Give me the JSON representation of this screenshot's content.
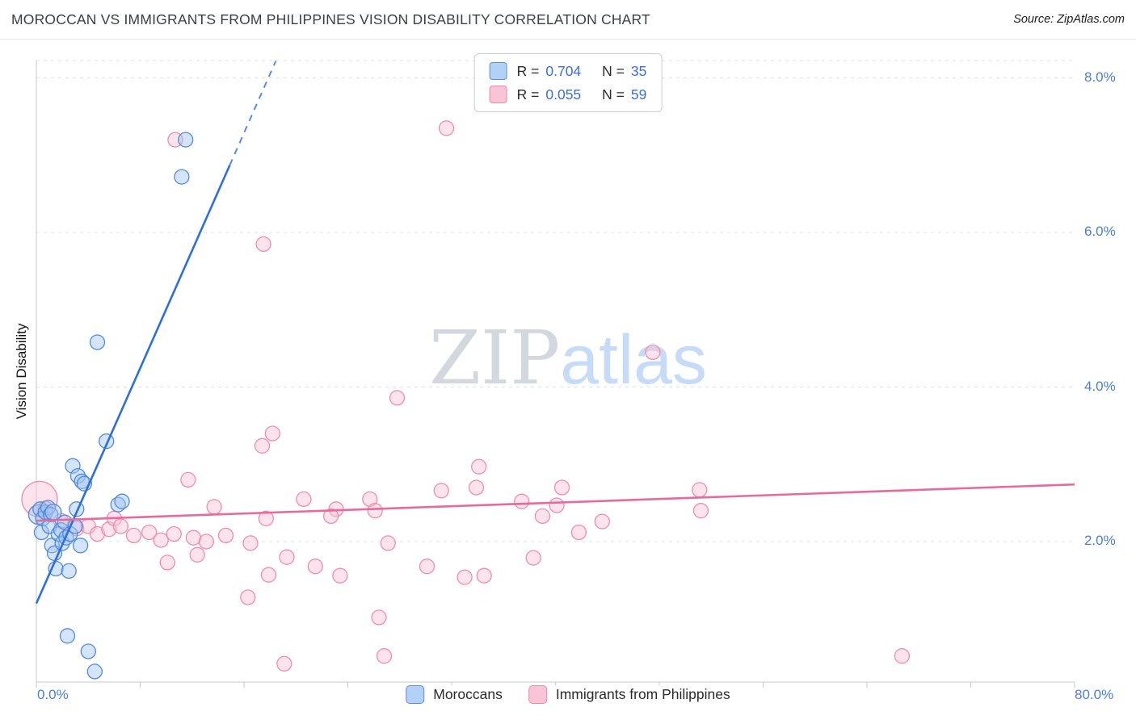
{
  "header": {
    "title": "MOROCCAN VS IMMIGRANTS FROM PHILIPPINES VISION DISABILITY CORRELATION CHART",
    "source": "Source: ZipAtlas.com"
  },
  "watermark": {
    "zip": "ZIP",
    "atlas": "atlas"
  },
  "correlation_legend": {
    "rows": [
      {
        "series": "Moroccans",
        "r_label": "R =",
        "r_value": "0.704",
        "n_label": "N =",
        "n_value": "35"
      },
      {
        "series": "Immigrants from Philippines",
        "r_label": "R =",
        "r_value": "0.055",
        "n_label": "N =",
        "n_value": "59"
      }
    ]
  },
  "bottom_legend": [
    {
      "label": "Moroccans"
    },
    {
      "label": "Immigrants from Philippines"
    }
  ],
  "colors": {
    "blue_fill": "#b3d0f7",
    "blue_stroke": "#5b8dd9",
    "pink_fill": "#f9c4d5",
    "pink_stroke": "#ef87ab",
    "axis_label_blue": "#4a7fd4",
    "value_blue": "#3a6fd8",
    "grid": "#dce0e5",
    "axis": "#c5cad1"
  },
  "chart_data": {
    "type": "scatter",
    "title": "MOROCCAN VS IMMIGRANTS FROM PHILIPPINES VISION DISABILITY CORRELATION CHART",
    "x_axis": {
      "range": [
        0,
        80
      ],
      "unit": "%",
      "tick_step": 8,
      "edge_labels": [
        "0.0%",
        "80.0%"
      ],
      "gridlines": false
    },
    "y_axis": {
      "label": "Vision Disability",
      "unit": "%",
      "ticks": [
        8,
        6,
        4,
        2
      ],
      "tick_labels": [
        "8.0%",
        "6.0%",
        "4.0%",
        "2.0%"
      ],
      "plot_range": [
        0.183,
        8.225
      ],
      "gridlines": "dashed",
      "labels_position": "right"
    },
    "legend_position": "top-center",
    "series": [
      {
        "name": "Moroccans",
        "R": 0.704,
        "N": 35,
        "point_fill": "#9fc3f2",
        "point_stroke": "#4a86d8",
        "trend": {
          "color": "#2e6fd8",
          "solid": [
            [
              0,
              1.2
            ],
            [
              14.9,
              6.87
            ]
          ],
          "dashed": [
            [
              14.9,
              6.87
            ],
            [
              18.45,
              8.22
            ]
          ]
        },
        "points": [
          [
            0.15,
            2.35,
            12
          ],
          [
            0.3,
            2.42,
            9
          ],
          [
            0.5,
            2.3,
            9
          ],
          [
            0.7,
            2.38,
            9
          ],
          [
            0.9,
            2.44,
            9
          ],
          [
            1.1,
            2.35,
            9
          ],
          [
            1.3,
            2.38,
            10
          ],
          [
            0.4,
            2.12,
            9
          ],
          [
            1.0,
            2.2,
            9
          ],
          [
            1.2,
            1.95,
            9
          ],
          [
            1.4,
            1.85,
            9
          ],
          [
            1.5,
            1.65,
            9
          ],
          [
            1.7,
            2.1,
            9
          ],
          [
            1.9,
            2.15,
            9
          ],
          [
            2.0,
            1.98,
            9
          ],
          [
            2.2,
            2.25,
            9
          ],
          [
            2.3,
            2.05,
            9
          ],
          [
            2.5,
            1.62,
            9
          ],
          [
            2.6,
            2.1,
            9
          ],
          [
            2.8,
            2.98,
            9
          ],
          [
            3.0,
            2.2,
            9
          ],
          [
            3.1,
            2.42,
            9
          ],
          [
            3.2,
            2.85,
            9
          ],
          [
            3.4,
            1.95,
            9
          ],
          [
            3.5,
            2.78,
            9
          ],
          [
            3.7,
            2.75,
            9
          ],
          [
            2.4,
            0.78,
            9
          ],
          [
            4.0,
            0.58,
            9
          ],
          [
            4.5,
            0.32,
            9
          ],
          [
            4.7,
            4.58,
            9
          ],
          [
            5.4,
            3.3,
            9
          ],
          [
            6.3,
            2.48,
            9
          ],
          [
            6.6,
            2.52,
            9
          ],
          [
            11.2,
            6.72,
            9
          ],
          [
            11.5,
            7.2,
            9
          ]
        ]
      },
      {
        "name": "Immigrants from Philippines",
        "R": 0.055,
        "N": 59,
        "point_fill": "#fac2d4",
        "point_stroke": "#ef87ab",
        "trend": {
          "color": "#e86a9a",
          "solid": [
            [
              0,
              2.27
            ],
            [
              80,
              2.74
            ]
          ]
        },
        "points": [
          [
            0.25,
            2.55,
            22
          ],
          [
            0.7,
            2.43,
            9
          ],
          [
            1.9,
            2.27,
            9
          ],
          [
            3.1,
            2.17,
            9
          ],
          [
            4.0,
            2.2,
            9
          ],
          [
            4.7,
            2.1,
            9
          ],
          [
            5.6,
            2.16,
            9
          ],
          [
            6.0,
            2.3,
            9
          ],
          [
            6.5,
            2.2,
            9
          ],
          [
            7.5,
            2.08,
            9
          ],
          [
            8.7,
            2.12,
            9
          ],
          [
            9.6,
            2.02,
            9
          ],
          [
            10.6,
            2.1,
            9
          ],
          [
            12.1,
            2.05,
            9
          ],
          [
            13.1,
            2.0,
            9
          ],
          [
            14.6,
            2.08,
            9
          ],
          [
            16.5,
            1.98,
            9
          ],
          [
            10.1,
            1.73,
            9
          ],
          [
            12.4,
            1.83,
            9
          ],
          [
            11.7,
            2.8,
            9
          ],
          [
            13.7,
            2.45,
            9
          ],
          [
            17.7,
            2.3,
            9
          ],
          [
            20.6,
            2.55,
            9
          ],
          [
            23.1,
            2.42,
            9
          ],
          [
            22.7,
            2.33,
            9
          ],
          [
            25.7,
            2.55,
            9
          ],
          [
            26.1,
            2.4,
            9
          ],
          [
            27.1,
            1.98,
            9
          ],
          [
            19.3,
            1.8,
            9
          ],
          [
            21.5,
            1.68,
            9
          ],
          [
            16.3,
            1.28,
            9
          ],
          [
            17.9,
            1.57,
            9
          ],
          [
            23.4,
            1.56,
            9
          ],
          [
            26.4,
            1.02,
            9
          ],
          [
            19.1,
            0.42,
            9
          ],
          [
            26.8,
            0.52,
            9
          ],
          [
            30.1,
            1.68,
            9
          ],
          [
            33.0,
            1.54,
            9
          ],
          [
            34.5,
            1.56,
            9
          ],
          [
            31.2,
            2.66,
            9
          ],
          [
            33.9,
            2.7,
            9
          ],
          [
            34.1,
            2.97,
            9
          ],
          [
            37.4,
            2.52,
            9
          ],
          [
            39.0,
            2.33,
            9
          ],
          [
            40.1,
            2.47,
            9
          ],
          [
            40.5,
            2.7,
            9
          ],
          [
            41.8,
            2.12,
            9
          ],
          [
            43.6,
            2.26,
            9
          ],
          [
            38.3,
            1.79,
            9
          ],
          [
            51.1,
            2.67,
            9
          ],
          [
            51.2,
            2.4,
            9
          ],
          [
            47.5,
            4.45,
            9
          ],
          [
            31.6,
            7.35,
            9
          ],
          [
            17.5,
            5.85,
            9
          ],
          [
            27.8,
            3.86,
            9
          ],
          [
            18.2,
            3.4,
            9
          ],
          [
            17.4,
            3.24,
            9
          ],
          [
            10.7,
            7.2,
            9
          ],
          [
            66.7,
            0.52,
            9
          ]
        ]
      }
    ]
  }
}
